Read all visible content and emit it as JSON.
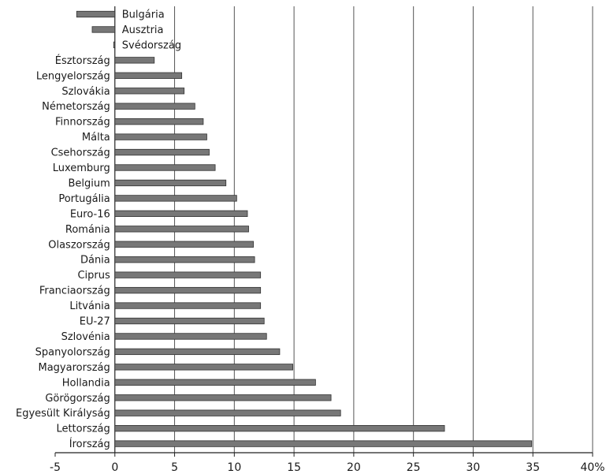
{
  "chart_data": {
    "type": "bar",
    "orientation": "horizontal",
    "categories": [
      "Bulgária",
      "Ausztria",
      "Svédország",
      "Észtország",
      "Lengyelország",
      "Szlovákia",
      "Németország",
      "Finnország",
      "Málta",
      "Csehország",
      "Luxemburg",
      "Belgium",
      "Portugália",
      "Euro-16",
      "Románia",
      "Olaszország",
      "Dánia",
      "Ciprus",
      "Franciaország",
      "Litvánia",
      "EU-27",
      "Szlovénia",
      "Spanyolország",
      "Magyarország",
      "Hollandia",
      "Görögország",
      "Egyesült Királyság",
      "Lettország",
      "Írország"
    ],
    "values": [
      -3.2,
      -1.9,
      -0.1,
      3.3,
      5.6,
      5.8,
      6.7,
      7.4,
      7.7,
      7.9,
      8.4,
      9.3,
      10.2,
      11.1,
      11.2,
      11.6,
      11.7,
      12.2,
      12.2,
      12.2,
      12.5,
      12.7,
      13.8,
      14.9,
      16.8,
      18.1,
      18.9,
      27.6,
      34.9
    ],
    "xlim": [
      -5,
      40
    ],
    "xticks": [
      "-5",
      "0",
      "5",
      "10",
      "15",
      "20",
      "25",
      "30",
      "35",
      "40%"
    ],
    "tick_values": [
      -5,
      0,
      5,
      10,
      15,
      20,
      25,
      30,
      35,
      40
    ],
    "grid": "vertical",
    "bar_color": "#777777",
    "bar_stroke": "#333333"
  }
}
